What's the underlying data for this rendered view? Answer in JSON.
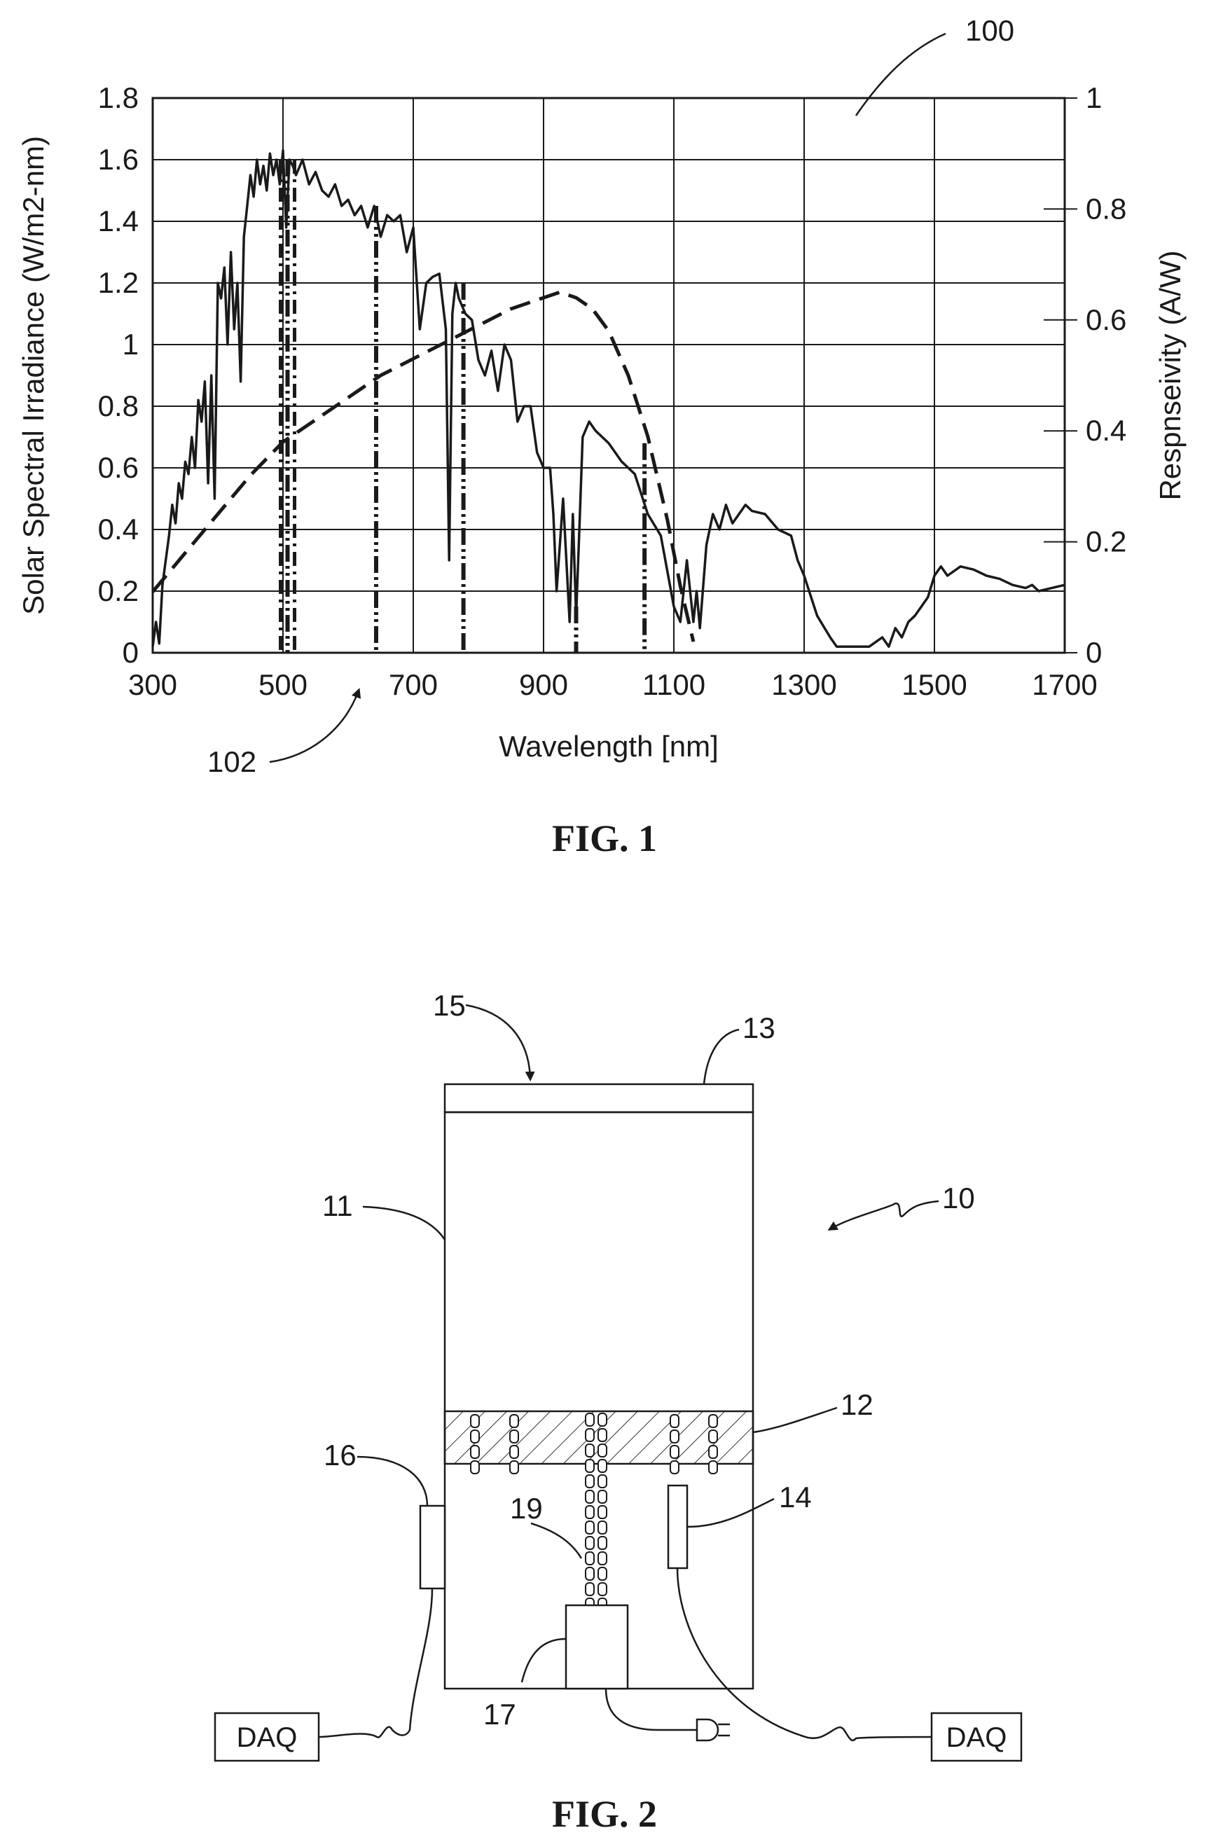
{
  "figure1": {
    "caption": "FIG. 1",
    "ref_chart": "100",
    "ref_bands": "102",
    "chart_data": {
      "type": "line",
      "title": "",
      "xlabel": "Wavelength [nm]",
      "ylabel": "Solar Spectral Irradiance (W/m2-nm)",
      "y2label": "Respnseivity (A/W)",
      "xlim": [
        300,
        1700
      ],
      "ylim": [
        0,
        1.8
      ],
      "y2lim": [
        0,
        1
      ],
      "grid": true,
      "x_ticks": [
        "300",
        "500",
        "700",
        "900",
        "1100",
        "1300",
        "1500",
        "1700"
      ],
      "y_ticks": [
        "0",
        "0.2",
        "0.4",
        "0.6",
        "0.8",
        "1",
        "1.2",
        "1.4",
        "1.6",
        "1.8"
      ],
      "y2_ticks": [
        "0",
        "0.2",
        "0.4",
        "0.6",
        "0.8",
        "1"
      ],
      "series": [
        {
          "style": "solid",
          "axis": "left",
          "x": [
            300,
            305,
            310,
            315,
            320,
            325,
            330,
            335,
            340,
            345,
            350,
            355,
            360,
            365,
            370,
            375,
            380,
            385,
            390,
            395,
            400,
            405,
            410,
            415,
            420,
            425,
            430,
            435,
            440,
            445,
            450,
            455,
            460,
            465,
            470,
            475,
            480,
            485,
            490,
            495,
            500,
            505,
            510,
            515,
            520,
            530,
            540,
            550,
            560,
            570,
            580,
            590,
            600,
            610,
            620,
            630,
            640,
            650,
            660,
            670,
            680,
            690,
            700,
            710,
            720,
            730,
            740,
            750,
            755,
            760,
            765,
            770,
            780,
            790,
            800,
            810,
            820,
            830,
            840,
            850,
            860,
            870,
            880,
            890,
            900,
            910,
            915,
            920,
            930,
            940,
            945,
            950,
            955,
            960,
            970,
            980,
            990,
            1000,
            1020,
            1040,
            1060,
            1080,
            1100,
            1110,
            1120,
            1130,
            1135,
            1140,
            1150,
            1160,
            1170,
            1180,
            1190,
            1200,
            1210,
            1220,
            1240,
            1260,
            1280,
            1290,
            1300,
            1320,
            1340,
            1350,
            1360,
            1380,
            1400,
            1420,
            1430,
            1440,
            1450,
            1460,
            1470,
            1480,
            1490,
            1500,
            1510,
            1520,
            1540,
            1560,
            1580,
            1600,
            1620,
            1640,
            1650,
            1660,
            1680,
            1700
          ],
          "y": [
            0.02,
            0.1,
            0.03,
            0.22,
            0.3,
            0.38,
            0.48,
            0.42,
            0.55,
            0.5,
            0.62,
            0.58,
            0.7,
            0.6,
            0.82,
            0.75,
            0.88,
            0.55,
            0.9,
            0.5,
            1.2,
            1.15,
            1.25,
            1.0,
            1.3,
            1.05,
            1.2,
            0.88,
            1.35,
            1.45,
            1.55,
            1.48,
            1.6,
            1.52,
            1.58,
            1.5,
            1.62,
            1.55,
            1.6,
            1.52,
            1.63,
            1.38,
            1.6,
            1.58,
            1.55,
            1.6,
            1.52,
            1.56,
            1.5,
            1.48,
            1.52,
            1.45,
            1.47,
            1.42,
            1.45,
            1.38,
            1.45,
            1.35,
            1.42,
            1.4,
            1.42,
            1.3,
            1.38,
            1.05,
            1.2,
            1.22,
            1.23,
            1.05,
            0.3,
            1.1,
            1.2,
            1.15,
            1.1,
            1.08,
            0.95,
            0.9,
            0.98,
            0.85,
            1.0,
            0.95,
            0.75,
            0.8,
            0.8,
            0.65,
            0.6,
            0.6,
            0.45,
            0.2,
            0.5,
            0.1,
            0.45,
            0.12,
            0.4,
            0.7,
            0.75,
            0.72,
            0.7,
            0.68,
            0.62,
            0.58,
            0.45,
            0.38,
            0.15,
            0.1,
            0.3,
            0.1,
            0.2,
            0.08,
            0.35,
            0.45,
            0.4,
            0.48,
            0.42,
            0.45,
            0.48,
            0.46,
            0.45,
            0.4,
            0.38,
            0.3,
            0.25,
            0.12,
            0.05,
            0.02,
            0.02,
            0.02,
            0.02,
            0.05,
            0.02,
            0.08,
            0.05,
            0.1,
            0.12,
            0.15,
            0.18,
            0.25,
            0.28,
            0.25,
            0.28,
            0.27,
            0.25,
            0.24,
            0.22,
            0.21,
            0.22,
            0.2,
            0.21,
            0.22
          ]
        },
        {
          "style": "dashed",
          "axis": "right",
          "x": [
            300,
            350,
            400,
            450,
            500,
            550,
            600,
            650,
            700,
            750,
            800,
            850,
            900,
            925,
            950,
            975,
            1000,
            1030,
            1060,
            1090,
            1110,
            1130
          ],
          "y": [
            0.11,
            0.18,
            0.25,
            0.32,
            0.38,
            0.42,
            0.46,
            0.5,
            0.53,
            0.56,
            0.59,
            0.62,
            0.64,
            0.65,
            0.64,
            0.62,
            0.58,
            0.5,
            0.39,
            0.24,
            0.12,
            0.02
          ]
        }
      ],
      "vertical_lines": [
        {
          "x": 507,
          "y_top": 1.6
        },
        {
          "x": 643,
          "y_top": 1.45
        },
        {
          "x": 777,
          "y_top": 1.2
        },
        {
          "x": 950,
          "y_top": 0.15
        },
        {
          "x": 1055,
          "y_top": 0.68
        }
      ]
    }
  },
  "figure2": {
    "caption": "FIG. 2",
    "labels": {
      "ref_10": "10",
      "ref_11": "11",
      "ref_12": "12",
      "ref_13": "13",
      "ref_14": "14",
      "ref_15": "15",
      "ref_16": "16",
      "ref_17": "17",
      "ref_19": "19"
    },
    "daq_left": "DAQ",
    "daq_right": "DAQ"
  }
}
